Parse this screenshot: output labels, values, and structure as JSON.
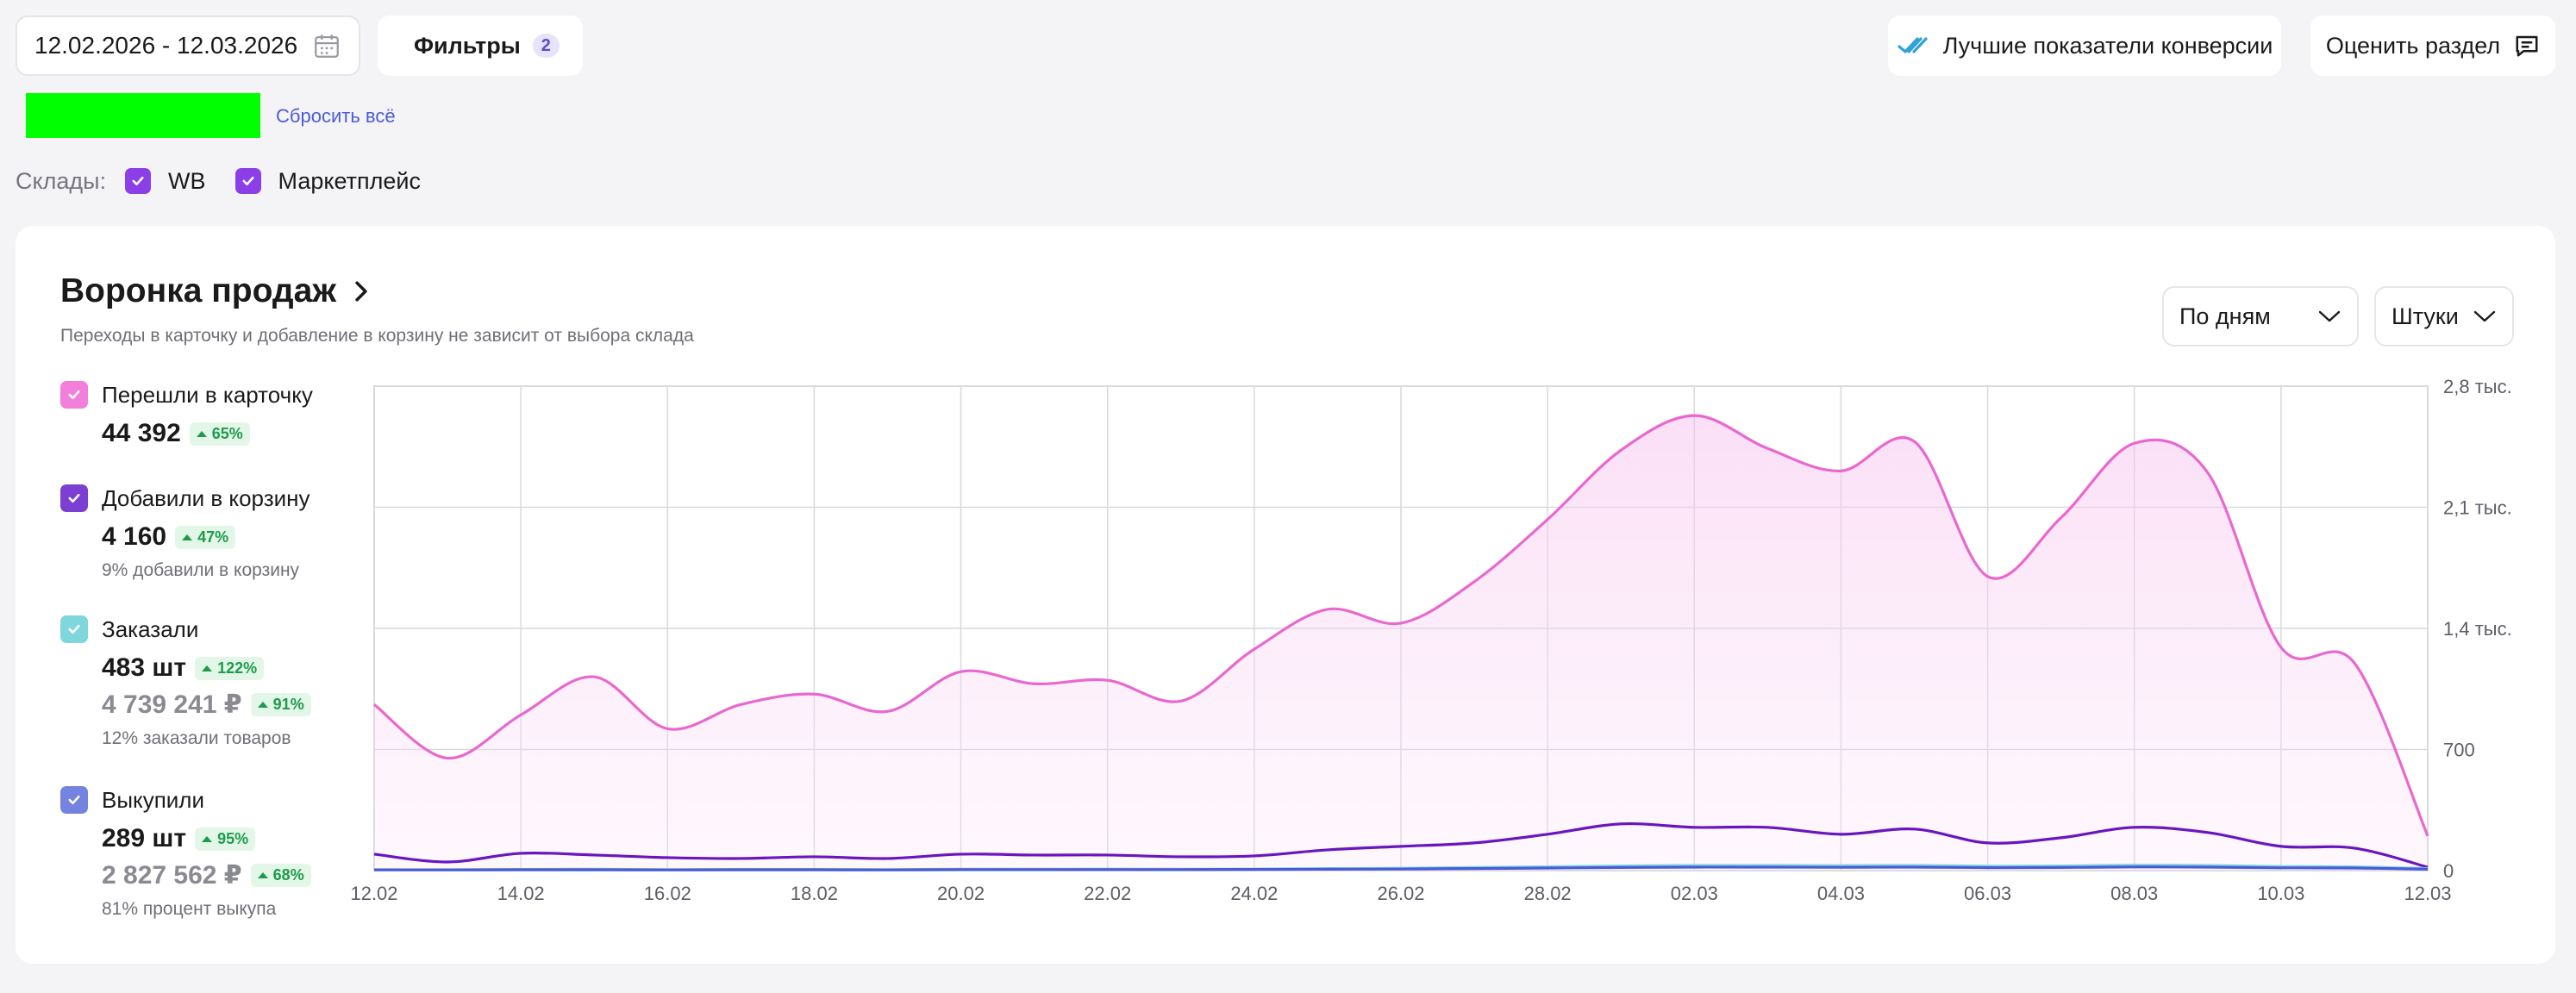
{
  "toolbar": {
    "date_range": "12.02.2026 - 12.03.2026",
    "filters_label": "Фильтры",
    "filters_count": "2",
    "best_conversion_label": "Лучшие показатели конверсии",
    "rate_section_label": "Оценить раздел",
    "reset_all_label": "Сбросить всё"
  },
  "warehouses": {
    "label": "Склады:",
    "options": [
      {
        "label": "WB",
        "checked": true
      },
      {
        "label": "Маркетплейс",
        "checked": true
      }
    ]
  },
  "funnel": {
    "title": "Воронка продаж",
    "subtitle": "Переходы в карточку и добавление в корзину не зависит от выбора склада",
    "period_select": "По дням",
    "unit_select": "Штуки",
    "metrics": [
      {
        "label": "Перешли в карточку",
        "color": "#f27fd9",
        "value": "44 392",
        "change": "65%"
      },
      {
        "label": "Добавили в корзину",
        "color": "#7b3fd1",
        "value": "4 160",
        "change": "47%",
        "note": "9% добавили в корзину"
      },
      {
        "label": "Заказали",
        "color": "#7fd6dc",
        "value": "483 шт",
        "change": "122%",
        "value2": "4 739 241 ₽",
        "change2": "91%",
        "note": "12% заказали товаров"
      },
      {
        "label": "Выкупили",
        "color": "#7483e0",
        "value": "289 шт",
        "change": "95%",
        "value2": "2 827 562 ₽",
        "change2": "68%",
        "note": "81% процент выкупа"
      }
    ]
  },
  "chart_data": {
    "type": "area",
    "x_tick_labels": [
      "12.02",
      "14.02",
      "16.02",
      "18.02",
      "20.02",
      "22.02",
      "24.02",
      "26.02",
      "28.02",
      "02.03",
      "04.03",
      "06.03",
      "08.03",
      "10.03",
      "12.03"
    ],
    "x": [
      "12.02",
      "13.02",
      "14.02",
      "15.02",
      "16.02",
      "17.02",
      "18.02",
      "19.02",
      "20.02",
      "21.02",
      "22.02",
      "23.02",
      "24.02",
      "25.02",
      "26.02",
      "27.02",
      "28.02",
      "01.03",
      "02.03",
      "03.03",
      "04.03",
      "05.03",
      "06.03",
      "07.03",
      "08.03",
      "09.03",
      "10.03",
      "11.03",
      "12.03"
    ],
    "y_tick_labels": [
      "0",
      "700",
      "1,4 тыс.",
      "2,1 тыс.",
      "2,8 тыс."
    ],
    "ylim": [
      0,
      2800
    ],
    "y_axis_side": "right",
    "grid": true,
    "series": [
      {
        "name": "Перешли в карточку",
        "color": "#e868cf",
        "fill": true,
        "values": [
          960,
          650,
          900,
          1120,
          820,
          960,
          1020,
          920,
          1150,
          1080,
          1100,
          980,
          1280,
          1510,
          1430,
          1670,
          2030,
          2430,
          2630,
          2440,
          2310,
          2480,
          1700,
          2040,
          2470,
          2300,
          1290,
          1200,
          200
        ]
      },
      {
        "name": "Добавили в корзину",
        "color": "#6a16bf",
        "values": [
          95,
          50,
          100,
          90,
          75,
          70,
          80,
          70,
          95,
          90,
          90,
          80,
          85,
          120,
          140,
          160,
          210,
          270,
          250,
          250,
          210,
          240,
          160,
          190,
          250,
          220,
          140,
          130,
          20
        ]
      },
      {
        "name": "Заказали",
        "color": "#7fd6dc",
        "values": [
          6,
          5,
          7,
          8,
          6,
          7,
          7,
          6,
          8,
          8,
          9,
          8,
          9,
          12,
          14,
          18,
          22,
          27,
          30,
          30,
          29,
          30,
          26,
          27,
          32,
          30,
          24,
          22,
          12
        ]
      },
      {
        "name": "Выкупили",
        "color": "#4a5ad8",
        "values": [
          4,
          4,
          5,
          5,
          4,
          5,
          5,
          4,
          6,
          6,
          6,
          6,
          7,
          8,
          9,
          12,
          15,
          18,
          20,
          20,
          19,
          20,
          17,
          18,
          21,
          20,
          16,
          15,
          8
        ]
      }
    ]
  },
  "icons": {
    "calendar": "calendar-icon",
    "filters": "sliders-icon",
    "best": "double-check-icon",
    "rate": "chat-icon",
    "chevron": "chevron-right-icon",
    "dropdown": "chevron-down-icon"
  }
}
